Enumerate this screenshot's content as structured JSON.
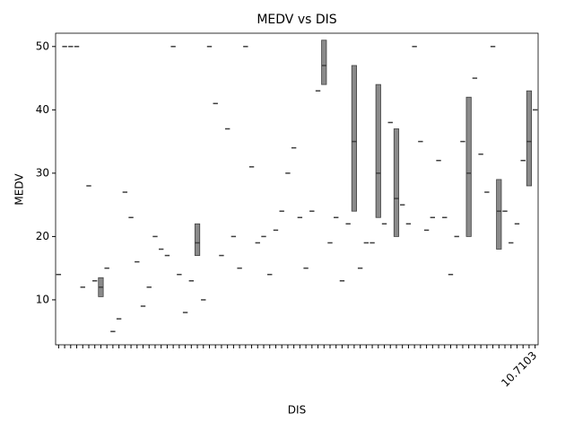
{
  "chart_data": {
    "type": "box",
    "title": "MEDV vs DIS",
    "x_label": "DIS",
    "y_label": "MEDV",
    "color": "#3f3f3f",
    "box_fill": "#8a8a8a",
    "ylim": [
      2.9,
      52.1
    ],
    "yticks": [
      10,
      20,
      30,
      40,
      50
    ],
    "categories": [
      null,
      null,
      null,
      null,
      null,
      null,
      null,
      null,
      null,
      null,
      null,
      null,
      null,
      null,
      null,
      null,
      null,
      null,
      null,
      null,
      null,
      null,
      null,
      null,
      null,
      null,
      null,
      null,
      null,
      null,
      null,
      null,
      null,
      null,
      null,
      null,
      null,
      null,
      null,
      null,
      null,
      null,
      null,
      null,
      null,
      null,
      null,
      null,
      null,
      null,
      null,
      null,
      null,
      null,
      null,
      null,
      null,
      null,
      null,
      null,
      null,
      null,
      null,
      null,
      null,
      null,
      null,
      null,
      null,
      null,
      null,
      null,
      null,
      null,
      null,
      null,
      null,
      null,
      null,
      "10.7103"
    ],
    "values": [
      14,
      50,
      50,
      50,
      12,
      28,
      13,
      12,
      15,
      5,
      7,
      27,
      23,
      16,
      9,
      12,
      20,
      18,
      17,
      50,
      14,
      8,
      13,
      19,
      10,
      50,
      41,
      17,
      37,
      20,
      15,
      50,
      31,
      19,
      20,
      14,
      21,
      24,
      30,
      34,
      23,
      15,
      24,
      43,
      47,
      19,
      23,
      13,
      22,
      35,
      15,
      19,
      19,
      30,
      22,
      38,
      26,
      25,
      22,
      50,
      35,
      21,
      23,
      32,
      23,
      14,
      20,
      35,
      30,
      45,
      33,
      27,
      50,
      24,
      24,
      19,
      22,
      32,
      35,
      40
    ],
    "q1": [
      null,
      null,
      null,
      null,
      null,
      null,
      null,
      10.5,
      null,
      null,
      null,
      null,
      null,
      null,
      null,
      null,
      null,
      null,
      null,
      null,
      null,
      null,
      null,
      17,
      null,
      null,
      null,
      null,
      null,
      null,
      null,
      null,
      null,
      null,
      null,
      null,
      null,
      null,
      null,
      null,
      null,
      null,
      null,
      null,
      44,
      null,
      null,
      null,
      null,
      24,
      null,
      null,
      null,
      23,
      null,
      null,
      20,
      null,
      null,
      null,
      null,
      null,
      null,
      null,
      null,
      null,
      null,
      null,
      20,
      null,
      null,
      null,
      null,
      18,
      null,
      null,
      null,
      null,
      28,
      null
    ],
    "q3": [
      null,
      null,
      null,
      null,
      null,
      null,
      null,
      13.5,
      null,
      null,
      null,
      null,
      null,
      null,
      null,
      null,
      null,
      null,
      null,
      null,
      null,
      null,
      null,
      22,
      null,
      null,
      null,
      null,
      null,
      null,
      null,
      null,
      null,
      null,
      null,
      null,
      null,
      null,
      null,
      null,
      null,
      null,
      null,
      null,
      51,
      null,
      null,
      null,
      null,
      47,
      null,
      null,
      null,
      44,
      null,
      null,
      37,
      null,
      null,
      null,
      null,
      null,
      null,
      null,
      null,
      null,
      null,
      null,
      42,
      null,
      null,
      null,
      null,
      29,
      null,
      null,
      null,
      null,
      43,
      null
    ]
  }
}
